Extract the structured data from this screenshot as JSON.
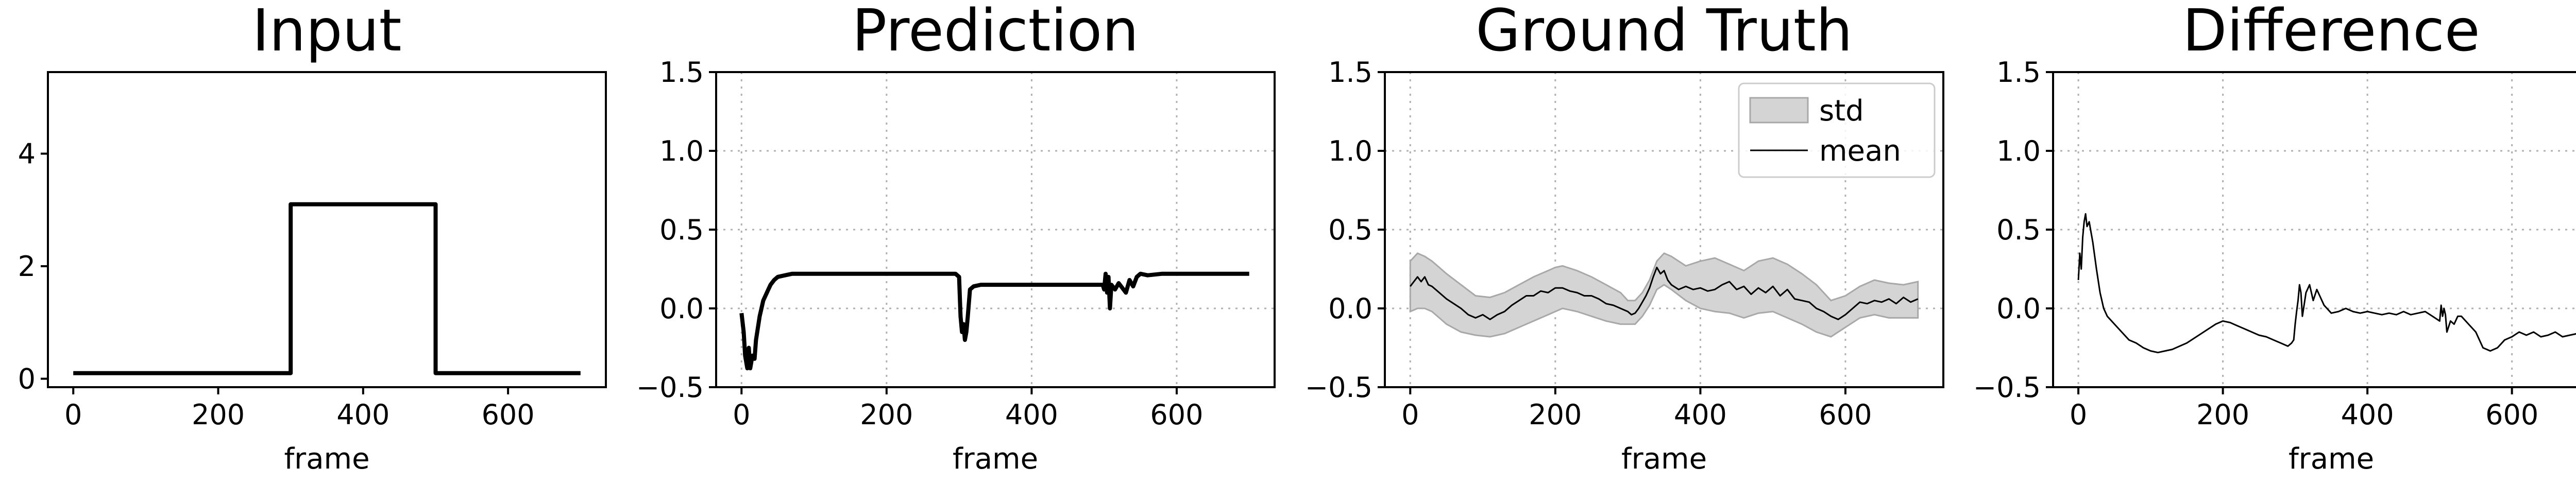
{
  "chart_data": [
    {
      "type": "line",
      "title": "Input",
      "xlabel": "frame",
      "ylabel": "",
      "xlim": [
        -35,
        735
      ],
      "ylim": [
        -0.15,
        5.45
      ],
      "xticks": [
        "0",
        "200",
        "400",
        "600"
      ],
      "yticks": [
        "0",
        "2",
        "4"
      ],
      "grid": false,
      "series": [
        {
          "x": [
            0,
            300,
            300,
            500,
            500,
            700
          ],
          "y": [
            0.1,
            0.1,
            3.1,
            3.1,
            0.1,
            0.1
          ]
        }
      ]
    },
    {
      "type": "line",
      "title": "Prediction",
      "xlabel": "frame",
      "ylabel": "",
      "xlim": [
        -35,
        735
      ],
      "ylim": [
        -0.5,
        1.5
      ],
      "xticks": [
        "0",
        "200",
        "400",
        "600"
      ],
      "yticks": [
        "−0.5",
        "0.0",
        "0.5",
        "1.0",
        "1.5"
      ],
      "grid": true,
      "series": [
        {
          "x": [
            0,
            3,
            5,
            8,
            10,
            12,
            15,
            18,
            20,
            25,
            30,
            35,
            40,
            45,
            50,
            60,
            70,
            80,
            100,
            150,
            200,
            250,
            295,
            300,
            302,
            304,
            306,
            308,
            310,
            312,
            315,
            320,
            330,
            350,
            400,
            450,
            498,
            500,
            502,
            504,
            506,
            508,
            510,
            515,
            520,
            525,
            530,
            535,
            540,
            545,
            550,
            560,
            580,
            600,
            650,
            700
          ],
          "y": [
            -0.03,
            -0.15,
            -0.3,
            -0.38,
            -0.25,
            -0.38,
            -0.3,
            -0.32,
            -0.2,
            -0.05,
            0.05,
            0.1,
            0.15,
            0.18,
            0.2,
            0.21,
            0.22,
            0.22,
            0.22,
            0.22,
            0.22,
            0.22,
            0.22,
            0.2,
            -0.05,
            -0.15,
            -0.1,
            -0.2,
            -0.15,
            -0.05,
            0.12,
            0.14,
            0.15,
            0.15,
            0.15,
            0.15,
            0.15,
            0.12,
            0.22,
            0.1,
            0.2,
            0.0,
            0.15,
            0.12,
            0.16,
            0.13,
            0.1,
            0.18,
            0.14,
            0.2,
            0.22,
            0.21,
            0.22,
            0.22,
            0.22,
            0.22
          ]
        }
      ]
    },
    {
      "type": "line",
      "title": "Ground Truth",
      "xlabel": "frame",
      "ylabel": "",
      "xlim": [
        -35,
        735
      ],
      "ylim": [
        -0.5,
        1.5
      ],
      "xticks": [
        "0",
        "200",
        "400",
        "600"
      ],
      "yticks": [
        "−0.5",
        "0.0",
        "0.5",
        "1.0",
        "1.5"
      ],
      "grid": true,
      "legend": {
        "position": "top-right",
        "entries": [
          "std",
          "mean"
        ]
      },
      "series": [
        {
          "name": "std",
          "x": [
            0,
            10,
            20,
            30,
            50,
            70,
            90,
            110,
            130,
            150,
            170,
            190,
            200,
            210,
            230,
            250,
            270,
            290,
            300,
            310,
            320,
            330,
            340,
            350,
            360,
            380,
            400,
            420,
            440,
            460,
            480,
            500,
            520,
            540,
            560,
            580,
            600,
            620,
            640,
            660,
            680,
            700
          ],
          "upper": [
            0.3,
            0.35,
            0.33,
            0.3,
            0.22,
            0.15,
            0.08,
            0.07,
            0.1,
            0.15,
            0.2,
            0.24,
            0.26,
            0.27,
            0.24,
            0.2,
            0.15,
            0.1,
            0.05,
            0.05,
            0.1,
            0.18,
            0.3,
            0.35,
            0.33,
            0.27,
            0.3,
            0.32,
            0.28,
            0.24,
            0.3,
            0.32,
            0.28,
            0.22,
            0.15,
            0.05,
            0.08,
            0.14,
            0.18,
            0.16,
            0.15,
            0.17
          ],
          "lower": [
            -0.02,
            0.0,
            0.0,
            -0.02,
            -0.1,
            -0.15,
            -0.17,
            -0.18,
            -0.16,
            -0.12,
            -0.08,
            -0.04,
            -0.02,
            0.0,
            -0.02,
            -0.05,
            -0.08,
            -0.1,
            -0.1,
            -0.1,
            -0.05,
            0.02,
            0.12,
            0.15,
            0.12,
            0.05,
            0.0,
            -0.02,
            -0.03,
            -0.06,
            -0.03,
            -0.02,
            -0.06,
            -0.1,
            -0.15,
            -0.18,
            -0.12,
            -0.06,
            -0.04,
            -0.06,
            -0.06,
            -0.06
          ]
        },
        {
          "name": "mean",
          "x": [
            0,
            5,
            10,
            15,
            20,
            25,
            30,
            40,
            50,
            60,
            70,
            80,
            90,
            100,
            110,
            120,
            130,
            140,
            150,
            160,
            170,
            180,
            190,
            200,
            210,
            220,
            230,
            240,
            250,
            260,
            270,
            280,
            290,
            300,
            305,
            310,
            315,
            320,
            325,
            330,
            335,
            340,
            345,
            350,
            355,
            360,
            370,
            380,
            390,
            400,
            410,
            420,
            430,
            440,
            450,
            460,
            470,
            480,
            490,
            500,
            510,
            520,
            530,
            540,
            550,
            560,
            570,
            580,
            590,
            600,
            610,
            620,
            630,
            640,
            650,
            660,
            670,
            680,
            690,
            700
          ],
          "y": [
            0.14,
            0.17,
            0.2,
            0.17,
            0.2,
            0.15,
            0.14,
            0.1,
            0.06,
            0.03,
            0.0,
            -0.04,
            -0.06,
            -0.04,
            -0.07,
            -0.04,
            -0.02,
            0.02,
            0.05,
            0.08,
            0.08,
            0.11,
            0.1,
            0.13,
            0.13,
            0.11,
            0.1,
            0.08,
            0.08,
            0.06,
            0.03,
            0.02,
            0.0,
            -0.02,
            -0.04,
            -0.03,
            0.0,
            0.04,
            0.08,
            0.13,
            0.2,
            0.26,
            0.22,
            0.24,
            0.18,
            0.15,
            0.12,
            0.14,
            0.12,
            0.13,
            0.11,
            0.12,
            0.15,
            0.17,
            0.12,
            0.14,
            0.09,
            0.13,
            0.1,
            0.14,
            0.08,
            0.12,
            0.06,
            0.05,
            0.04,
            0.0,
            -0.02,
            -0.05,
            -0.07,
            -0.04,
            0.0,
            0.04,
            0.03,
            0.05,
            0.04,
            0.06,
            0.03,
            0.07,
            0.04,
            0.06
          ]
        }
      ]
    },
    {
      "type": "line",
      "title": "Difference",
      "xlabel": "frame",
      "ylabel": "",
      "xlim": [
        -35,
        735
      ],
      "ylim": [
        -0.5,
        1.5
      ],
      "xticks": [
        "0",
        "200",
        "400",
        "600"
      ],
      "yticks": [
        "−0.5",
        "0.0",
        "0.5",
        "1.0",
        "1.5"
      ],
      "grid": true,
      "series": [
        {
          "x": [
            0,
            2,
            4,
            6,
            8,
            10,
            12,
            15,
            20,
            25,
            30,
            35,
            40,
            50,
            60,
            70,
            80,
            90,
            100,
            110,
            120,
            130,
            140,
            150,
            160,
            170,
            180,
            190,
            200,
            210,
            220,
            230,
            240,
            250,
            260,
            270,
            280,
            290,
            295,
            298,
            300,
            302,
            304,
            306,
            308,
            310,
            315,
            320,
            325,
            330,
            340,
            350,
            360,
            370,
            380,
            390,
            400,
            410,
            420,
            430,
            440,
            450,
            460,
            470,
            480,
            490,
            500,
            502,
            504,
            506,
            508,
            510,
            515,
            520,
            525,
            530,
            540,
            550,
            560,
            570,
            580,
            590,
            600,
            610,
            620,
            630,
            640,
            650,
            660,
            670,
            680,
            690,
            700
          ],
          "y": [
            0.18,
            0.35,
            0.25,
            0.45,
            0.55,
            0.6,
            0.52,
            0.55,
            0.42,
            0.25,
            0.1,
            0.0,
            -0.05,
            -0.1,
            -0.15,
            -0.2,
            -0.22,
            -0.25,
            -0.27,
            -0.28,
            -0.27,
            -0.26,
            -0.24,
            -0.22,
            -0.19,
            -0.16,
            -0.13,
            -0.1,
            -0.08,
            -0.09,
            -0.11,
            -0.13,
            -0.15,
            -0.17,
            -0.18,
            -0.2,
            -0.22,
            -0.24,
            -0.22,
            -0.2,
            -0.1,
            -0.02,
            0.05,
            0.15,
            0.1,
            -0.05,
            0.1,
            0.15,
            0.05,
            0.12,
            0.02,
            -0.03,
            -0.02,
            0.0,
            -0.02,
            -0.03,
            -0.02,
            -0.03,
            -0.04,
            -0.03,
            -0.04,
            -0.02,
            -0.04,
            -0.03,
            -0.02,
            -0.05,
            -0.08,
            0.02,
            -0.05,
            0.0,
            -0.04,
            -0.15,
            -0.08,
            -0.1,
            -0.05,
            -0.05,
            -0.1,
            -0.15,
            -0.25,
            -0.27,
            -0.25,
            -0.2,
            -0.18,
            -0.15,
            -0.17,
            -0.15,
            -0.18,
            -0.17,
            -0.15,
            -0.18,
            -0.17,
            -0.16,
            -0.17
          ]
        }
      ]
    }
  ]
}
